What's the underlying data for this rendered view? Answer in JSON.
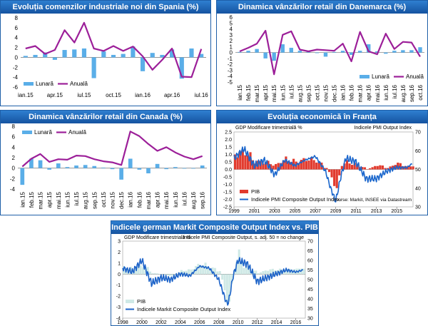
{
  "chart_data": [
    {
      "id": "spain",
      "type": "bar",
      "title": "Evoluția comenzilor industriale noi din Spania (%)",
      "tick_labels": [
        "ian.15",
        "apr.15",
        "iul.15",
        "oct.15",
        "ian.16",
        "apr.16",
        "iul.16"
      ],
      "yticks": [
        -6,
        -4,
        -2,
        0,
        2,
        4,
        6,
        8
      ],
      "ylim": [
        -6,
        8
      ],
      "legend": {
        "bar": "Lunară",
        "line": "Anuală"
      },
      "series": [
        {
          "name": "Lunară",
          "type": "bar",
          "values": [
            0.3,
            0.5,
            1.0,
            -0.5,
            1.5,
            1.6,
            1.8,
            -4.2,
            1.2,
            0.5,
            0.7,
            2.2,
            -2.8,
            0.9,
            0.5,
            1.6,
            -4.3,
            1.8,
            0.7
          ]
        },
        {
          "name": "Anuală",
          "type": "line",
          "values": [
            1.8,
            2.3,
            0.7,
            1.5,
            5.5,
            3.0,
            7.0,
            1.8,
            1.3,
            2.3,
            1.3,
            2.2,
            0.2,
            -2.5,
            -0.5,
            1.8,
            -3.9,
            -4.0,
            1.7
          ]
        }
      ]
    },
    {
      "id": "denmark",
      "type": "bar",
      "title": "Dinamica vânzărilor retail din Danemarca (%)",
      "tick_labels": [
        "ian.15",
        "feb.15",
        "mar.15",
        "apr.15",
        "mai.15",
        "iun.15",
        "iul.15",
        "aug.15",
        "sep.15",
        "oct.15",
        "nov.15",
        "dec.15",
        "ian.16",
        "feb.16",
        "mar.16",
        "apr.16",
        "mai.16",
        "iun.16",
        "iul.16",
        "aug.16",
        "sep.16",
        "oct.16"
      ],
      "yticks": [
        -5,
        -4,
        -3,
        -2,
        -1,
        0,
        1,
        2,
        3,
        4,
        5,
        6
      ],
      "ylim": [
        -5,
        6
      ],
      "legend": {
        "bar": "Lunară",
        "line": "Anuală"
      },
      "series": [
        {
          "name": "Lunară",
          "type": "bar",
          "values": [
            0.1,
            0.3,
            0.6,
            -1.0,
            -1.4,
            1.4,
            0.8,
            0.3,
            0.2,
            -0.1,
            -0.7,
            0.1,
            0.3,
            -0.4,
            0.3,
            1.4,
            0.2,
            -0.2,
            0.3,
            0.4,
            0.4,
            0.9
          ]
        },
        {
          "name": "Anuală",
          "type": "line",
          "values": [
            0.2,
            0.8,
            1.5,
            3.7,
            -3.7,
            3.0,
            3.6,
            0.5,
            0.2,
            0.5,
            0.4,
            0.3,
            1.5,
            -1.5,
            3.5,
            0.2,
            -0.3,
            3.2,
            0.6,
            1.8,
            1.7,
            -0.7
          ]
        }
      ]
    },
    {
      "id": "canada",
      "type": "bar",
      "title": "Dinamica vânzărilor retail din Canada (%)",
      "tick_labels": [
        "ian.15",
        "feb.15",
        "mar.15",
        "apr.15",
        "mai.15",
        "iun.15",
        "iul.15",
        "aug.15",
        "sep.15",
        "oct.15",
        "nov.15",
        "dec.15",
        "ian.16",
        "feb.16",
        "mar.16",
        "apr.16",
        "mai.16",
        "iun.16",
        "iul.16",
        "aug.16",
        "sep.16"
      ],
      "yticks": [
        -4,
        -2,
        0,
        2,
        4,
        6,
        8
      ],
      "ylim": [
        -4,
        8
      ],
      "legend": {
        "bar": "Lunară",
        "line": "Anuală"
      },
      "series": [
        {
          "name": "Lunară",
          "type": "bar",
          "values": [
            -3.2,
            1.8,
            1.5,
            -0.3,
            0.9,
            0.2,
            0.5,
            0.6,
            0.4,
            0.1,
            -0.2,
            -2.2,
            1.8,
            -0.3,
            -1.0,
            0.8,
            -0.2,
            0.2,
            -0.1,
            -0.1,
            0.5
          ]
        },
        {
          "name": "Anuală",
          "type": "line",
          "values": [
            0.3,
            1.8,
            2.7,
            1.2,
            1.7,
            1.6,
            2.4,
            2.3,
            1.7,
            1.3,
            1.1,
            0.6,
            7.0,
            6.1,
            4.6,
            3.3,
            4.0,
            3.0,
            2.2,
            1.7,
            2.3
          ]
        }
      ]
    },
    {
      "id": "france",
      "type": "bar",
      "title": "Evoluția economică în Franța",
      "left_title": "GDP Modificare trimestrială %",
      "right_title": "Indicele PMI Output Index",
      "tick_labels": [
        "1999",
        "2001",
        "2003",
        "2005",
        "2007",
        "2009",
        "2011",
        "2013",
        "2015"
      ],
      "x_range": [
        1999,
        2016.6
      ],
      "yticks_left": [
        -2.5,
        -2.0,
        -1.5,
        -1.0,
        -0.5,
        0.0,
        0.5,
        1.0,
        1.5,
        2.0,
        2.5
      ],
      "ylim_left": [
        -2.5,
        2.5
      ],
      "yticks_right": [
        30,
        40,
        50,
        60,
        70
      ],
      "ylim_right": [
        30,
        70
      ],
      "legend": {
        "bar": "PIB",
        "line": "Indicele PMI Composite Output Index"
      },
      "source": "surse: Markit, INSEE via Datastream",
      "series": [
        {
          "name": "PIB",
          "type": "bar",
          "x": [
            1999,
            2000,
            2001,
            2002,
            2003,
            2004,
            2005,
            2006,
            2007,
            2008,
            2008.5,
            2009,
            2009.5,
            2010,
            2011,
            2012,
            2013,
            2014,
            2015,
            2016
          ],
          "values": [
            1.0,
            1.2,
            0.5,
            0.5,
            0.3,
            0.7,
            0.5,
            0.7,
            0.6,
            0.1,
            -0.5,
            -1.5,
            0.3,
            0.5,
            0.3,
            0.0,
            0.3,
            0.1,
            0.4,
            0.2
          ]
        },
        {
          "name": "Indicele PMI Composite Output Index",
          "type": "line",
          "x": [
            1999,
            2000,
            2001,
            2002,
            2003,
            2004,
            2005,
            2006,
            2007,
            2008,
            2008.5,
            2009,
            2009.5,
            2010,
            2011,
            2012,
            2013,
            2014,
            2015,
            2016,
            2016.5
          ],
          "values": [
            56,
            61,
            52,
            55,
            47,
            55,
            52,
            55,
            57,
            49,
            40,
            33,
            46,
            56,
            54,
            45,
            45,
            49,
            51,
            51,
            53
          ]
        }
      ]
    },
    {
      "id": "germany",
      "type": "bar",
      "title": "Indicele german Markit Composite Output Index vs. PIB",
      "left_title": "GDP Modificare trimestrială %",
      "right_title": "Indicele PMI Composite Output, s. adj. 50 = no change",
      "tick_labels": [
        "1998",
        "2000",
        "2002",
        "2004",
        "2006",
        "2008",
        "2010",
        "2012",
        "2014",
        "2016"
      ],
      "x_range": [
        1998,
        2017
      ],
      "yticks_left": [
        -4,
        -3,
        -2,
        -1,
        0,
        1,
        2,
        3
      ],
      "ylim_left": [
        -4,
        3
      ],
      "yticks_right": [
        30,
        35,
        40,
        45,
        50,
        55,
        60,
        65,
        70
      ],
      "ylim_right": [
        30,
        70
      ],
      "legend": {
        "bar": "PIB",
        "line": "Indicele Markit Composite Output Index"
      },
      "series": [
        {
          "name": "PIB",
          "type": "bar",
          "x": [
            1998,
            1999,
            2000,
            2001,
            2002,
            2003,
            2004,
            2005,
            2006,
            2007,
            2008,
            2008.6,
            2009,
            2009.5,
            2010,
            2010.5,
            2011,
            2012,
            2013,
            2014,
            2015,
            2016
          ],
          "values": [
            0.6,
            0.5,
            0.8,
            0.1,
            0.0,
            -0.2,
            0.3,
            0.4,
            1.0,
            0.6,
            0.3,
            -1.8,
            -3.0,
            0.5,
            1.8,
            0.7,
            0.5,
            0.1,
            0.4,
            0.4,
            0.4,
            0.5
          ]
        },
        {
          "name": "Indicele Markit Composite Output Index",
          "type": "line",
          "x": [
            1998,
            1999,
            2000,
            2001,
            2002,
            2003,
            2004,
            2005,
            2006,
            2007,
            2008,
            2008.8,
            2009,
            2009.5,
            2010,
            2011,
            2012,
            2013,
            2014,
            2015,
            2016,
            2016.8
          ],
          "values": [
            56,
            54,
            60,
            48,
            51,
            50,
            53,
            52,
            57,
            56,
            50,
            38,
            38,
            52,
            60,
            58,
            49,
            51,
            53,
            55,
            54,
            55
          ]
        }
      ]
    }
  ]
}
